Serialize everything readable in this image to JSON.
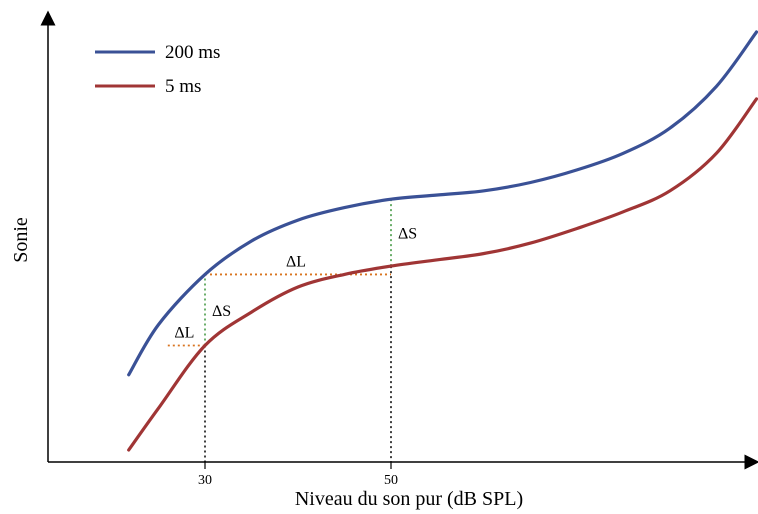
{
  "chart_data": {
    "type": "line",
    "xlabel": "Niveau du son pur (dB SPL)",
    "ylabel": "Sonie",
    "x_ticks": [
      "30",
      "50"
    ],
    "legend": {
      "position": "top-left"
    },
    "grid": false,
    "series": [
      {
        "name": "200 ms",
        "color": "#3a5196",
        "points": [
          [
            21.8,
            0.18
          ],
          [
            25,
            0.3
          ],
          [
            30,
            0.42
          ],
          [
            35,
            0.5
          ],
          [
            40,
            0.55
          ],
          [
            45,
            0.58
          ],
          [
            50,
            0.6
          ],
          [
            55,
            0.61
          ],
          [
            60,
            0.62
          ],
          [
            65,
            0.64
          ],
          [
            70,
            0.67
          ],
          [
            75,
            0.71
          ],
          [
            80,
            0.77
          ],
          [
            85,
            0.87
          ],
          [
            89.3,
            1.0
          ]
        ]
      },
      {
        "name": "5 ms",
        "color": "#a03535",
        "points": [
          [
            21.8,
            0.0
          ],
          [
            25,
            0.1
          ],
          [
            30,
            0.25
          ],
          [
            35,
            0.33
          ],
          [
            40,
            0.39
          ],
          [
            45,
            0.42
          ],
          [
            50,
            0.44
          ],
          [
            55,
            0.455
          ],
          [
            60,
            0.47
          ],
          [
            65,
            0.495
          ],
          [
            70,
            0.53
          ],
          [
            75,
            0.57
          ],
          [
            80,
            0.62
          ],
          [
            85,
            0.71
          ],
          [
            89.3,
            0.84
          ]
        ]
      }
    ],
    "annotations": [
      {
        "text": "ΔL",
        "type": "horizontal",
        "x1": 26.0,
        "x2": 30,
        "y": 0.25,
        "color": "#d9741f"
      },
      {
        "text": "ΔS",
        "type": "vertical",
        "x": 30,
        "y1": 0.25,
        "y2": 0.42,
        "color": "#5aa55a"
      },
      {
        "text": "ΔL",
        "type": "horizontal",
        "x1": 30,
        "x2": 50,
        "y": 0.42,
        "color": "#d9741f"
      },
      {
        "text": "ΔS",
        "type": "vertical",
        "x": 50,
        "y1": 0.44,
        "y2": 0.6,
        "color": "#5aa55a"
      }
    ]
  }
}
